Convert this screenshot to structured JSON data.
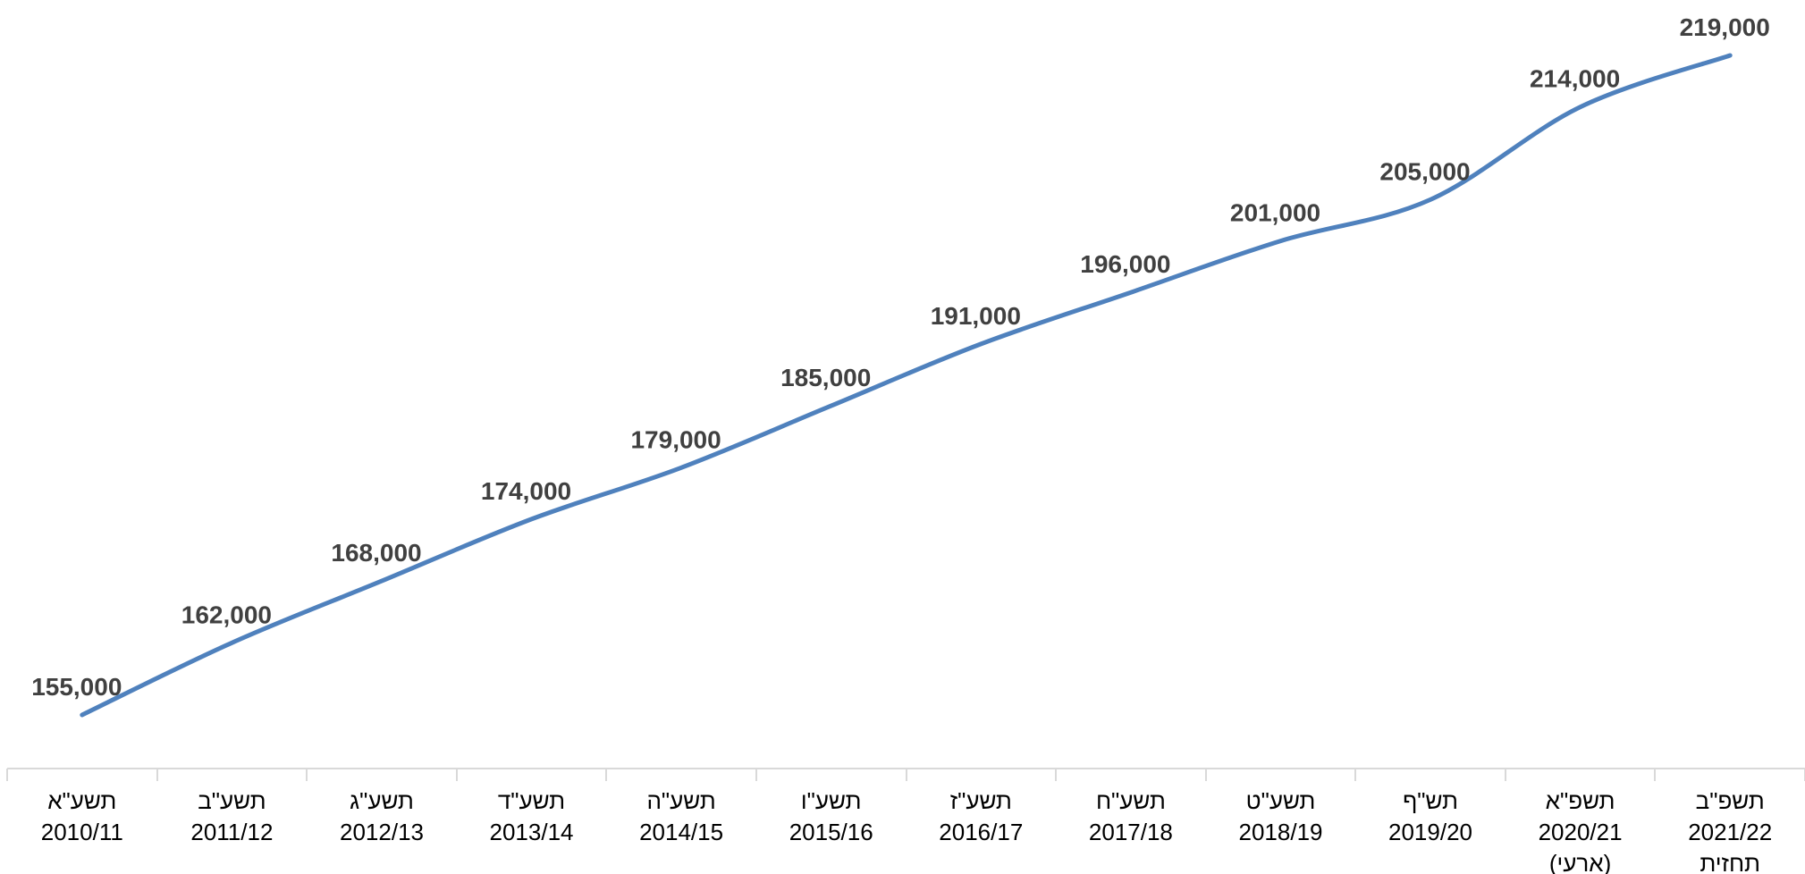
{
  "chart_data": {
    "type": "line",
    "categories": [
      {
        "line1": "תשע\"א",
        "line2": "2010/11",
        "line3": ""
      },
      {
        "line1": "תשע\"ב",
        "line2": "2011/12",
        "line3": ""
      },
      {
        "line1": "תשע\"ג",
        "line2": "2012/13",
        "line3": ""
      },
      {
        "line1": "תשע\"ד",
        "line2": "2013/14",
        "line3": ""
      },
      {
        "line1": "תשע\"ה",
        "line2": "2014/15",
        "line3": ""
      },
      {
        "line1": "תשע\"ו",
        "line2": "2015/16",
        "line3": ""
      },
      {
        "line1": "תשע\"ז",
        "line2": "2016/17",
        "line3": ""
      },
      {
        "line1": "תשע\"ח",
        "line2": "2017/18",
        "line3": ""
      },
      {
        "line1": "תשע\"ט",
        "line2": "2018/19",
        "line3": ""
      },
      {
        "line1": "תש\"ף",
        "line2": "2019/20",
        "line3": ""
      },
      {
        "line1": "תשפ\"א",
        "line2": "2020/21",
        "line3": "(ארעי)"
      },
      {
        "line1": "תשפ\"ב",
        "line2": "2021/22",
        "line3": "תחזית"
      }
    ],
    "values": [
      155000,
      162000,
      168000,
      174000,
      179000,
      185000,
      191000,
      196000,
      201000,
      205000,
      214000,
      219000
    ],
    "value_labels": [
      "155,000",
      "162,000",
      "168,000",
      "174,000",
      "179,000",
      "185,000",
      "191,000",
      "196,000",
      "201,000",
      "205,000",
      "214,000",
      "219,000"
    ],
    "ylim": [
      150000,
      222000
    ],
    "grid": false,
    "legend": "none",
    "line_color": "#4f81bd",
    "label_color": "#404040",
    "axis_color": "#d9d9d9"
  }
}
